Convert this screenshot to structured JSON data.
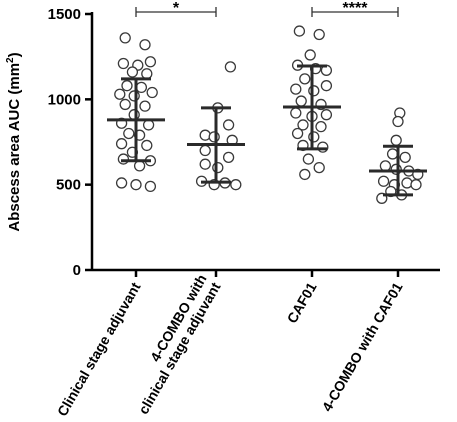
{
  "chart_data": {
    "type": "scatter",
    "ylabel": "Abscess area AUC (mm",
    "ylabel_sup": "2",
    "ylabel_close": ")",
    "ylim": [
      0,
      1500
    ],
    "yticks": [
      0,
      500,
      1000,
      1500
    ],
    "categories": [
      [
        "Clinical stage adjuvant"
      ],
      [
        "4-COMBO with",
        "clinical stage adjuvant"
      ],
      [
        "CAF01"
      ],
      [
        "4-COMBO with CAF01"
      ]
    ],
    "groups": [
      {
        "mean": 880,
        "sd_low": 640,
        "sd_high": 1120,
        "points": [
          {
            "v": 1360,
            "j": -0.3
          },
          {
            "v": 1320,
            "j": 0.25
          },
          {
            "v": 1210,
            "j": -0.35
          },
          {
            "v": 1200,
            "j": 0.05
          },
          {
            "v": 1220,
            "j": 0.4
          },
          {
            "v": 1160,
            "j": -0.1
          },
          {
            "v": 1150,
            "j": 0.3
          },
          {
            "v": 1080,
            "j": -0.25
          },
          {
            "v": 1070,
            "j": 0.15
          },
          {
            "v": 1030,
            "j": -0.45
          },
          {
            "v": 1020,
            "j": -0.05
          },
          {
            "v": 1040,
            "j": 0.45
          },
          {
            "v": 970,
            "j": -0.3
          },
          {
            "v": 960,
            "j": 0.25
          },
          {
            "v": 910,
            "j": -0.05
          },
          {
            "v": 860,
            "j": -0.4
          },
          {
            "v": 850,
            "j": 0.35
          },
          {
            "v": 800,
            "j": -0.2
          },
          {
            "v": 790,
            "j": 0.1
          },
          {
            "v": 740,
            "j": -0.4
          },
          {
            "v": 730,
            "j": 0.3
          },
          {
            "v": 690,
            "j": -0.1
          },
          {
            "v": 650,
            "j": -0.35
          },
          {
            "v": 640,
            "j": 0.4
          },
          {
            "v": 610,
            "j": 0.1
          },
          {
            "v": 510,
            "j": -0.4
          },
          {
            "v": 500,
            "j": 0.0
          },
          {
            "v": 490,
            "j": 0.4
          }
        ]
      },
      {
        "mean": 735,
        "sd_low": 515,
        "sd_high": 950,
        "points": [
          {
            "v": 1190,
            "j": 0.4
          },
          {
            "v": 950,
            "j": 0.05
          },
          {
            "v": 850,
            "j": 0.35
          },
          {
            "v": 790,
            "j": -0.3
          },
          {
            "v": 780,
            "j": -0.05
          },
          {
            "v": 760,
            "j": 0.45
          },
          {
            "v": 700,
            "j": -0.3
          },
          {
            "v": 660,
            "j": 0.35
          },
          {
            "v": 620,
            "j": -0.3
          },
          {
            "v": 600,
            "j": 0.05
          },
          {
            "v": 520,
            "j": -0.4
          },
          {
            "v": 500,
            "j": -0.05
          },
          {
            "v": 510,
            "j": 0.25
          },
          {
            "v": 500,
            "j": 0.55
          }
        ]
      },
      {
        "mean": 955,
        "sd_low": 710,
        "sd_high": 1195,
        "points": [
          {
            "v": 1400,
            "j": -0.35
          },
          {
            "v": 1380,
            "j": 0.2
          },
          {
            "v": 1260,
            "j": -0.05
          },
          {
            "v": 1200,
            "j": -0.4
          },
          {
            "v": 1180,
            "j": 0.1
          },
          {
            "v": 1170,
            "j": 0.4
          },
          {
            "v": 1120,
            "j": -0.2
          },
          {
            "v": 1060,
            "j": -0.45
          },
          {
            "v": 1050,
            "j": 0.05
          },
          {
            "v": 1080,
            "j": 0.4
          },
          {
            "v": 990,
            "j": -0.3
          },
          {
            "v": 970,
            "j": 0.25
          },
          {
            "v": 920,
            "j": -0.45
          },
          {
            "v": 900,
            "j": 0.0
          },
          {
            "v": 910,
            "j": 0.4
          },
          {
            "v": 850,
            "j": -0.25
          },
          {
            "v": 840,
            "j": 0.25
          },
          {
            "v": 800,
            "j": -0.4
          },
          {
            "v": 780,
            "j": 0.05
          },
          {
            "v": 730,
            "j": -0.25
          },
          {
            "v": 720,
            "j": 0.3
          },
          {
            "v": 650,
            "j": -0.1
          },
          {
            "v": 600,
            "j": 0.2
          },
          {
            "v": 560,
            "j": -0.2
          }
        ]
      },
      {
        "mean": 580,
        "sd_low": 440,
        "sd_high": 725,
        "points": [
          {
            "v": 920,
            "j": 0.05
          },
          {
            "v": 870,
            "j": 0.0
          },
          {
            "v": 760,
            "j": -0.05
          },
          {
            "v": 680,
            "j": -0.15
          },
          {
            "v": 660,
            "j": 0.2
          },
          {
            "v": 610,
            "j": -0.35
          },
          {
            "v": 590,
            "j": -0.05
          },
          {
            "v": 580,
            "j": 0.3
          },
          {
            "v": 560,
            "j": 0.55
          },
          {
            "v": 520,
            "j": -0.4
          },
          {
            "v": 500,
            "j": -0.1
          },
          {
            "v": 510,
            "j": 0.25
          },
          {
            "v": 500,
            "j": 0.5
          },
          {
            "v": 460,
            "j": -0.2
          },
          {
            "v": 440,
            "j": 0.1
          },
          {
            "v": 420,
            "j": -0.45
          }
        ]
      }
    ],
    "significance": [
      {
        "from": 0,
        "to": 1,
        "label": "*"
      },
      {
        "from": 2,
        "to": 3,
        "label": "****"
      }
    ]
  }
}
